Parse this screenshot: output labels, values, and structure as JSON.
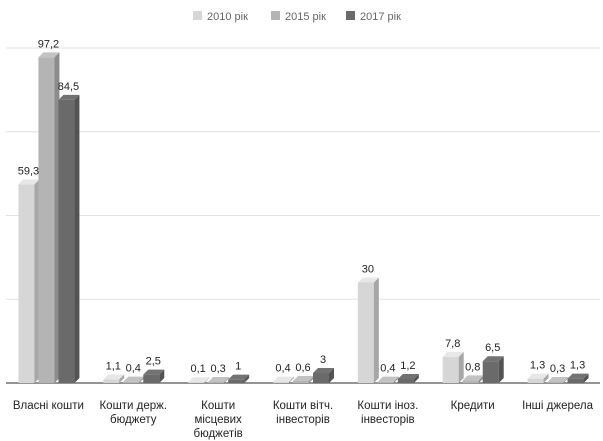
{
  "chart_data": {
    "type": "bar",
    "title": "",
    "xlabel": "",
    "ylabel": "",
    "ylim": [
      0,
      100
    ],
    "grid": true,
    "legend_position": "top-center",
    "categories": [
      [
        "Власні кошти"
      ],
      [
        "Кошти держ.",
        "бюджету"
      ],
      [
        "Кошти",
        "місцевих",
        "бюджетів"
      ],
      [
        "Кошти вітч.",
        "інвесторів"
      ],
      [
        "Кошти іноз.",
        "інвесторів"
      ],
      [
        "Кредити"
      ],
      [
        "Інші джерела"
      ]
    ],
    "series": [
      {
        "name": "2010 рік",
        "color": "#d6d6d6",
        "values": [
          59.3,
          1.1,
          0.1,
          0.4,
          30,
          7.8,
          1.3
        ],
        "labels": [
          "59,3",
          "1,1",
          "0,1",
          "0,4",
          "30",
          "7,8",
          "1,3"
        ]
      },
      {
        "name": "2015 рік",
        "color": "#b4b4b4",
        "values": [
          97.2,
          0.4,
          0.3,
          0.6,
          0.4,
          0.8,
          0.3
        ],
        "labels": [
          "97,2",
          "0,4",
          "0,3",
          "0,6",
          "0,4",
          "0,8",
          "0,3"
        ]
      },
      {
        "name": "2017 рік",
        "color": "#6a6a6a",
        "values": [
          84.5,
          2.5,
          1,
          3,
          1.2,
          6.5,
          1.3
        ],
        "labels": [
          "84,5",
          "2,5",
          "1",
          "3",
          "1,2",
          "6,5",
          "1,3"
        ]
      }
    ]
  }
}
